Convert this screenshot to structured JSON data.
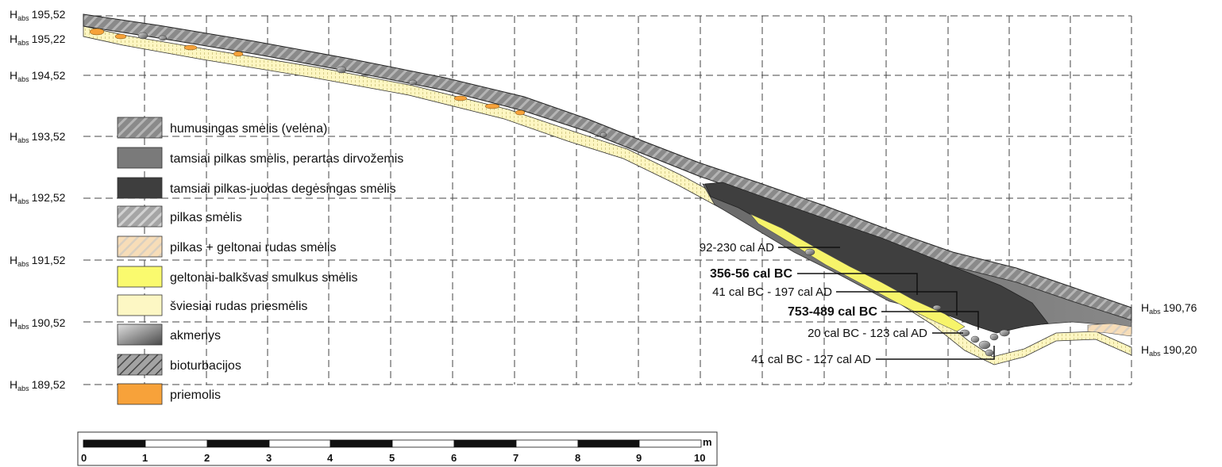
{
  "elevations_left": [
    {
      "main": "H",
      "sub": "abs",
      "value": "195,52"
    },
    {
      "main": "H",
      "sub": "abs",
      "value": "195,22"
    },
    {
      "main": "H",
      "sub": "abs",
      "value": "194,52"
    },
    {
      "main": "H",
      "sub": "abs",
      "value": "193,52"
    },
    {
      "main": "H",
      "sub": "abs",
      "value": "192,52"
    },
    {
      "main": "H",
      "sub": "abs",
      "value": "191,52"
    },
    {
      "main": "H",
      "sub": "abs",
      "value": "190,52"
    },
    {
      "main": "H",
      "sub": "abs",
      "value": "189,52"
    }
  ],
  "elevations_right": [
    {
      "main": "H",
      "sub": "abs",
      "value": "190,76"
    },
    {
      "main": "H",
      "sub": "abs",
      "value": "190,20"
    }
  ],
  "legend": [
    {
      "label": "humusingas smėlis (velėna)",
      "pattern": "humus",
      "color": "#8c8c8c"
    },
    {
      "label": "tamsiai pilkas smėlis, perartas dirvožemis",
      "pattern": "darkgray",
      "color": "#7a7a7a"
    },
    {
      "label": "tamsiai pilkas-juodas degėsingas smėlis",
      "pattern": "black",
      "color": "#3e3e3e"
    },
    {
      "label": "pilkas smėlis",
      "pattern": "gray",
      "color": "#a6a6a6"
    },
    {
      "label": "pilkas + geltonai rudas smėlis",
      "pattern": "graybeige",
      "color": "#f6dcb4"
    },
    {
      "label": "geltonai-balkšvas smulkus smėlis",
      "pattern": "yellow",
      "color": "#fafa6e"
    },
    {
      "label": "šviesiai rudas priesmėlis",
      "pattern": "lightbrown",
      "color": "#fdf7c4"
    },
    {
      "label": "akmenys",
      "pattern": "stone",
      "color": "#9a9a9a"
    },
    {
      "label": "bioturbacijos",
      "pattern": "bio",
      "color": "#a0a0a0"
    },
    {
      "label": "priemolis",
      "pattern": "clay",
      "color": "#f7a23a"
    }
  ],
  "dates": [
    {
      "label": "92-230 cal AD",
      "bold": false
    },
    {
      "label": "356-56 cal BC",
      "bold": true
    },
    {
      "label": "41 cal BC - 197 cal AD",
      "bold": false
    },
    {
      "label": "753-489 cal BC",
      "bold": true
    },
    {
      "label": "20 cal BC - 123 cal AD",
      "bold": false
    },
    {
      "label": "41 cal BC - 127 cal AD",
      "bold": false
    }
  ],
  "scale": {
    "unit": "m",
    "ticks": [
      "0",
      "1",
      "2",
      "3",
      "4",
      "5",
      "6",
      "7",
      "8",
      "9",
      "10"
    ]
  }
}
